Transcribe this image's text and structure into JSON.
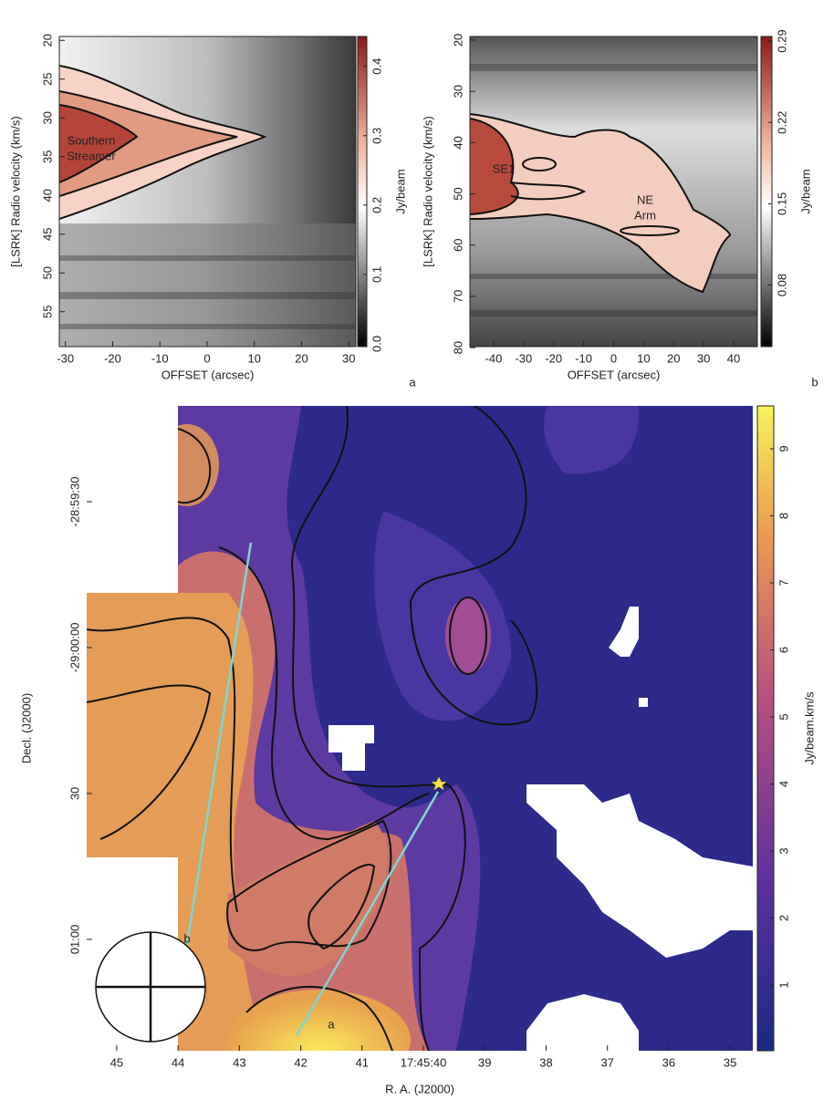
{
  "chart_data": [
    {
      "type": "heatmap",
      "panel_label": "a",
      "x_label": "OFFSET (arcsec)",
      "y_label": "[LSRK] Radio velocity (km/s)",
      "xlim": [
        -31.3,
        31.5
      ],
      "xticks": [
        -30,
        -20,
        -10,
        0,
        10,
        20,
        30
      ],
      "ylim": [
        59.5,
        19.5
      ],
      "yticks": [
        20,
        25,
        30,
        35,
        40,
        45,
        50,
        55
      ],
      "colorbar": {
        "label": "Jy/beam",
        "lim": [
          -0.004,
          0.443
        ],
        "ticks": [
          {
            "value": 0,
            "label": "0.0"
          },
          0.1,
          0.2,
          0.3,
          0.4
        ]
      },
      "annotations": [
        "Southern",
        "Streamer"
      ]
    },
    {
      "type": "heatmap",
      "panel_label": "b",
      "x_label": "OFFSET (arcsec)",
      "y_label": "[LSRK] Radio velocity (km/s)",
      "xlim": [
        -47.9,
        47.9
      ],
      "xticks": [
        -40,
        -30,
        -20,
        -10,
        0,
        10,
        20,
        30,
        40
      ],
      "ylim": [
        79.8,
        19.3
      ],
      "yticks": [
        20,
        30,
        40,
        50,
        60,
        70,
        80
      ],
      "colorbar": {
        "label": "Jy/beam",
        "lim": [
          0.027,
          0.294
        ],
        "ticks": [
          0.08,
          0.15,
          0.22,
          0.29
        ]
      },
      "annotations": [
        "SE1",
        "NE",
        "Arm"
      ]
    },
    {
      "type": "heatmap",
      "x_label": "R. A. (J2000)",
      "y_label": "Decl. (J2000)",
      "xlim": [
        45.49,
        34.63
      ],
      "xticks": [
        45,
        44,
        43,
        42,
        41,
        {
          "value": 40,
          "label": "17:45:40"
        },
        39,
        38,
        37,
        36,
        35
      ],
      "ylim": [
        -82.9,
        49.7
      ],
      "yticks": [
        {
          "value": 30,
          "label": "-28:59:30"
        },
        {
          "value": 0,
          "label": "-29:00:00"
        },
        {
          "value": -30,
          "label": "30"
        },
        {
          "value": -60,
          "label": "01:00"
        }
      ],
      "colorbar": {
        "label": "Jy/beam.km/s",
        "lim": [
          0.02,
          9.64
        ],
        "ticks": [
          1,
          2,
          3,
          4,
          5,
          6,
          7,
          8,
          9
        ]
      },
      "annotations": [
        "a",
        "b"
      ]
    }
  ]
}
